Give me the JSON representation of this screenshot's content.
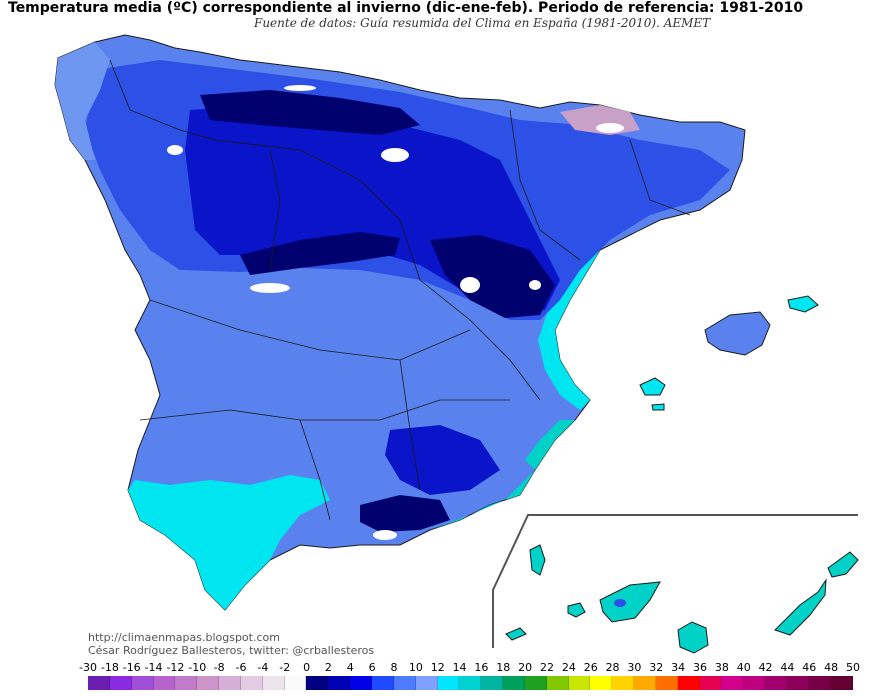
{
  "title": "Temperatura media (ºC) correspondiente al invierno (dic-ene-feb). Periodo de referencia: 1981-2010",
  "subtitle": "Fuente de datos: Guía resumida del Clima en España (1981-2010). AEMET",
  "credit_blog": "http://climaenmapas.blogspot.com",
  "credit_author": "César Rodríguez Ballesteros, twitter: @crballesteros",
  "legend": {
    "ticks": [
      "-30",
      "-18",
      "-16",
      "-14",
      "-12",
      "-10",
      "-8",
      "-6",
      "-4",
      "-2",
      "0",
      "2",
      "4",
      "6",
      "8",
      "10",
      "12",
      "14",
      "16",
      "18",
      "20",
      "22",
      "24",
      "26",
      "28",
      "30",
      "32",
      "34",
      "36",
      "38",
      "40",
      "42",
      "44",
      "46",
      "48",
      "50"
    ],
    "colors": [
      "#6a1fb0",
      "#8a2be2",
      "#a14fd6",
      "#b664cc",
      "#c27bc8",
      "#cc94c8",
      "#d6aed6",
      "#e3cce3",
      "#ede3ed",
      "#fafafa",
      "#000080",
      "#0000b4",
      "#0000e6",
      "#1e4bff",
      "#4e7bff",
      "#7ea1ff",
      "#00e6ff",
      "#00d2d2",
      "#00b4a0",
      "#00a05a",
      "#20a020",
      "#82c800",
      "#c8e600",
      "#ffff00",
      "#ffd200",
      "#ffaa00",
      "#ff6e00",
      "#ff0000",
      "#e60050",
      "#d2008c",
      "#be0080",
      "#a0006e",
      "#8c005a",
      "#780046",
      "#640032"
    ]
  },
  "colors": {
    "coldest": "#00006e",
    "very_cold": "#0a14c8",
    "cold": "#2d50e6",
    "mild": "#5a82ee",
    "cool": "#6f96f0",
    "warmish": "#00e6f0",
    "warm": "#00d2c8",
    "snow": "#ffffff",
    "pyrenees": "#c8a0c8",
    "sea": "#ffffff",
    "border": "#1a1a1a"
  }
}
